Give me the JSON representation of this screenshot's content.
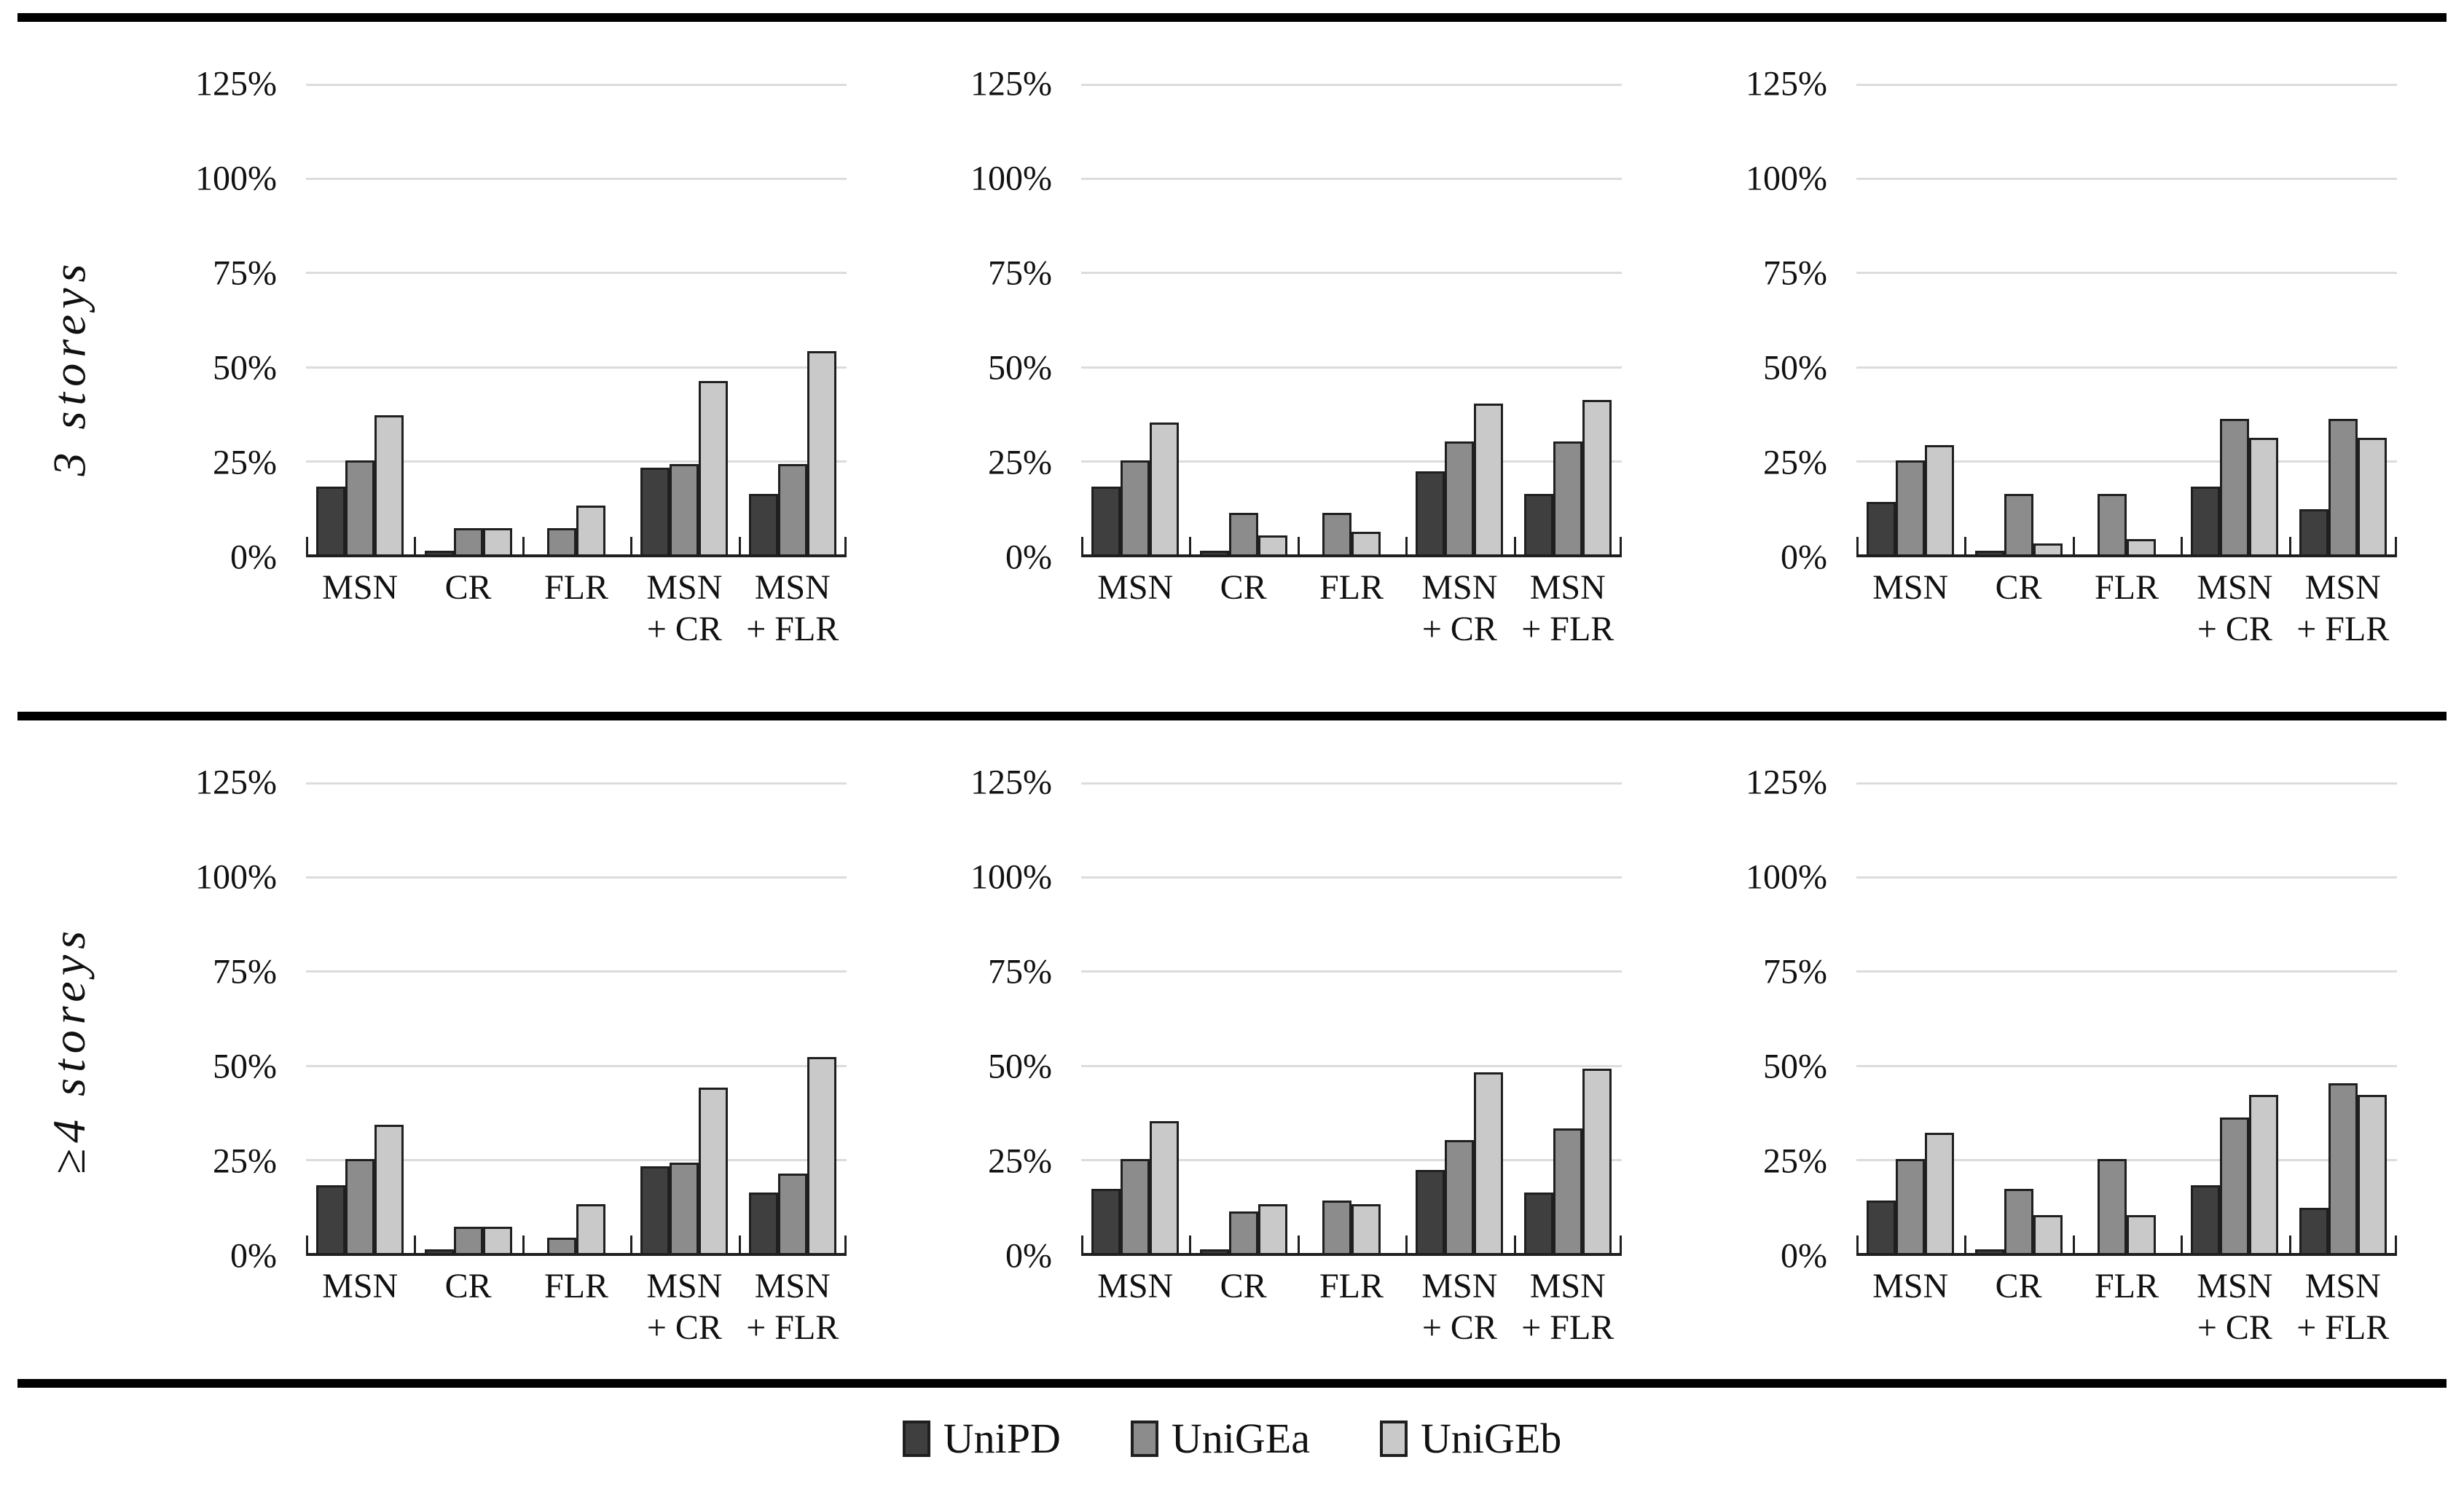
{
  "rows": [
    {
      "label": "3 storeys"
    },
    {
      "label": "≥4 storeys"
    }
  ],
  "layout": {
    "rows": [
      {
        "label": "3 storeys",
        "charts": [
          0,
          1,
          2
        ]
      },
      {
        "label": "≥4 storeys",
        "charts": [
          3,
          4,
          5
        ]
      }
    ],
    "categories_display": [
      {
        "l1": "MSN",
        "l2": ""
      },
      {
        "l1": "CR",
        "l2": ""
      },
      {
        "l1": "FLR",
        "l2": ""
      },
      {
        "l1": "MSN",
        "l2": "+ CR"
      },
      {
        "l1": "MSN",
        "l2": "+ FLR"
      }
    ],
    "yticks_top_to_bottom": [
      "125%",
      "100%",
      "75%",
      "50%",
      "25%",
      "0%"
    ]
  },
  "legend": {
    "items": [
      {
        "label": "UniPD",
        "color": "#3f3f3f"
      },
      {
        "label": "UniGEa",
        "color": "#8c8c8c"
      },
      {
        "label": "UniGEb",
        "color": "#c9c9c9"
      }
    ]
  },
  "colors": {
    "bar_border": "#1f1f1f",
    "gridline": "#dcdcdc",
    "axis": "#1f1f1f",
    "rule": "#000000"
  },
  "chart_data": [
    {
      "type": "bar",
      "row": "3 storeys",
      "col": 1,
      "categories": [
        "MSN",
        "CR",
        "FLR",
        "MSN + CR",
        "MSN + FLR"
      ],
      "series": [
        {
          "name": "UniPD",
          "values": [
            18,
            1,
            0,
            23,
            16
          ]
        },
        {
          "name": "UniGEa",
          "values": [
            25,
            7,
            7,
            24,
            24
          ]
        },
        {
          "name": "UniGEb",
          "values": [
            37,
            7,
            13,
            46,
            54
          ]
        }
      ],
      "ylabel": "",
      "ylim": [
        0,
        125
      ],
      "yticks_pct": [
        0,
        25,
        50,
        75,
        100,
        125
      ],
      "grid": true,
      "unit": "%"
    },
    {
      "type": "bar",
      "row": "3 storeys",
      "col": 2,
      "categories": [
        "MSN",
        "CR",
        "FLR",
        "MSN + CR",
        "MSN + FLR"
      ],
      "series": [
        {
          "name": "UniPD",
          "values": [
            18,
            1,
            0,
            22,
            16
          ]
        },
        {
          "name": "UniGEa",
          "values": [
            25,
            11,
            11,
            30,
            30
          ]
        },
        {
          "name": "UniGEb",
          "values": [
            35,
            5,
            6,
            40,
            41
          ]
        }
      ],
      "ylabel": "",
      "ylim": [
        0,
        125
      ],
      "yticks_pct": [
        0,
        25,
        50,
        75,
        100,
        125
      ],
      "grid": true,
      "unit": "%"
    },
    {
      "type": "bar",
      "row": "3 storeys",
      "col": 3,
      "categories": [
        "MSN",
        "CR",
        "FLR",
        "MSN + CR",
        "MSN + FLR"
      ],
      "series": [
        {
          "name": "UniPD",
          "values": [
            14,
            1,
            0,
            18,
            12
          ]
        },
        {
          "name": "UniGEa",
          "values": [
            25,
            16,
            16,
            36,
            36
          ]
        },
        {
          "name": "UniGEb",
          "values": [
            29,
            3,
            4,
            31,
            31
          ]
        }
      ],
      "ylabel": "",
      "ylim": [
        0,
        125
      ],
      "yticks_pct": [
        0,
        25,
        50,
        75,
        100,
        125
      ],
      "grid": true,
      "unit": "%"
    },
    {
      "type": "bar",
      "row": "≥4 storeys",
      "col": 1,
      "categories": [
        "MSN",
        "CR",
        "FLR",
        "MSN + CR",
        "MSN + FLR"
      ],
      "series": [
        {
          "name": "UniPD",
          "values": [
            18,
            1,
            0,
            23,
            16
          ]
        },
        {
          "name": "UniGEa",
          "values": [
            25,
            7,
            4,
            24,
            21
          ]
        },
        {
          "name": "UniGEb",
          "values": [
            34,
            7,
            13,
            44,
            52
          ]
        }
      ],
      "ylabel": "",
      "ylim": [
        0,
        125
      ],
      "yticks_pct": [
        0,
        25,
        50,
        75,
        100,
        125
      ],
      "grid": true,
      "unit": "%"
    },
    {
      "type": "bar",
      "row": "≥4 storeys",
      "col": 2,
      "categories": [
        "MSN",
        "CR",
        "FLR",
        "MSN + CR",
        "MSN + FLR"
      ],
      "series": [
        {
          "name": "UniPD",
          "values": [
            17,
            1,
            0,
            22,
            16
          ]
        },
        {
          "name": "UniGEa",
          "values": [
            25,
            11,
            14,
            30,
            33
          ]
        },
        {
          "name": "UniGEb",
          "values": [
            35,
            13,
            13,
            48,
            49
          ]
        }
      ],
      "ylabel": "",
      "ylim": [
        0,
        125
      ],
      "yticks_pct": [
        0,
        25,
        50,
        75,
        100,
        125
      ],
      "grid": true,
      "unit": "%"
    },
    {
      "type": "bar",
      "row": "≥4 storeys",
      "col": 3,
      "categories": [
        "MSN",
        "CR",
        "FLR",
        "MSN + CR",
        "MSN + FLR"
      ],
      "series": [
        {
          "name": "UniPD",
          "values": [
            14,
            1,
            0,
            18,
            12
          ]
        },
        {
          "name": "UniGEa",
          "values": [
            25,
            17,
            25,
            36,
            45
          ]
        },
        {
          "name": "UniGEb",
          "values": [
            32,
            10,
            10,
            42,
            42
          ]
        }
      ],
      "ylabel": "",
      "ylim": [
        0,
        125
      ],
      "yticks_pct": [
        0,
        25,
        50,
        75,
        100,
        125
      ],
      "grid": true,
      "unit": "%"
    }
  ]
}
